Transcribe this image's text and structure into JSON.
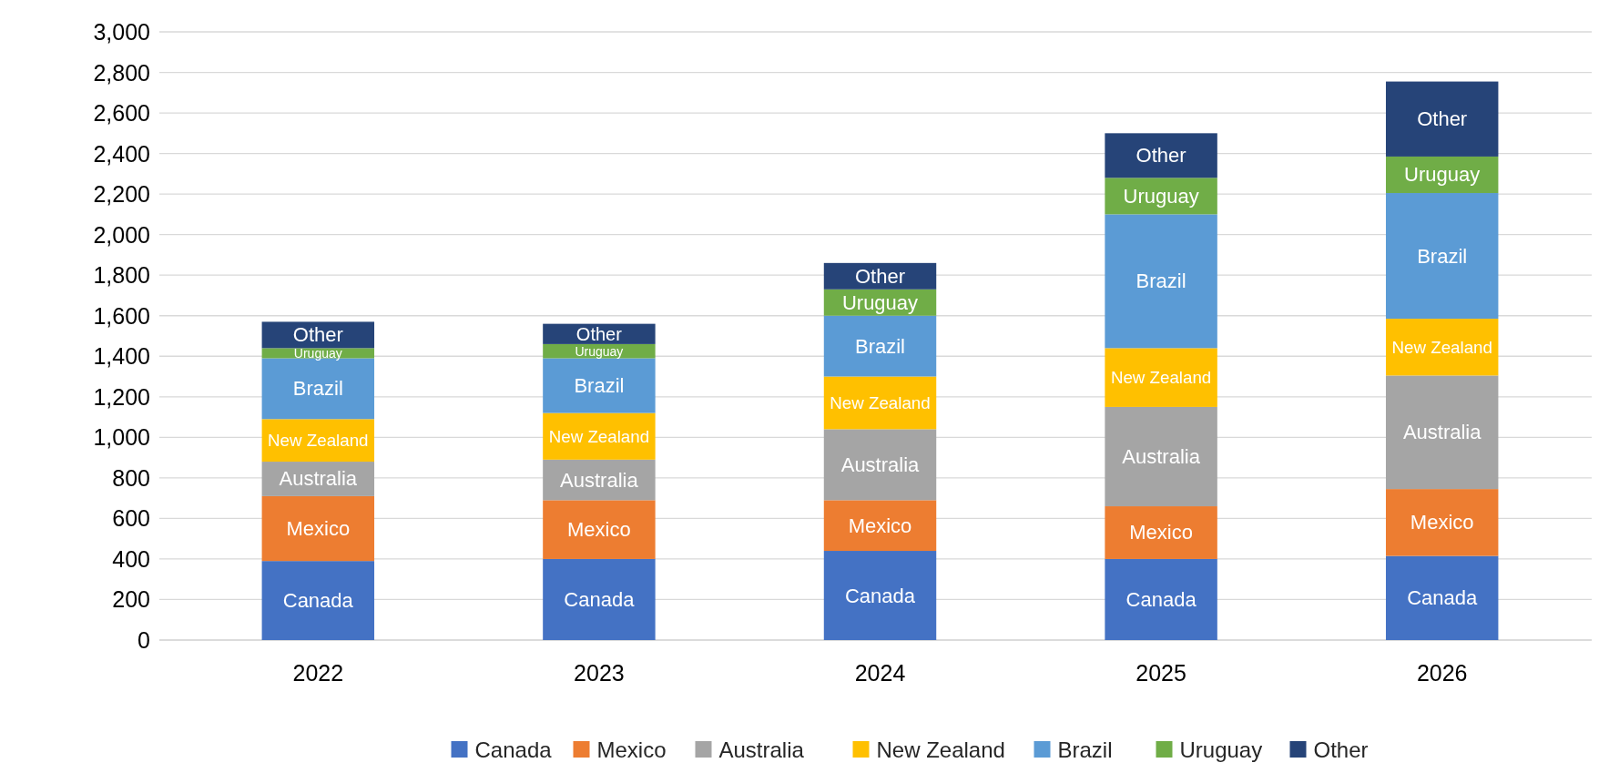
{
  "chart_data": {
    "type": "bar",
    "stacked": true,
    "categories": [
      "2022",
      "2023",
      "2024",
      "2025",
      "2026"
    ],
    "series": [
      {
        "name": "Canada",
        "color": "#4472c4",
        "values": [
          390,
          400,
          440,
          400,
          415
        ]
      },
      {
        "name": "Mexico",
        "color": "#ed7d31",
        "values": [
          320,
          290,
          250,
          260,
          330
        ]
      },
      {
        "name": "Australia",
        "color": "#a5a5a5",
        "values": [
          170,
          200,
          350,
          490,
          560
        ]
      },
      {
        "name": "New Zealand",
        "color": "#ffc000",
        "values": [
          210,
          230,
          260,
          290,
          280
        ]
      },
      {
        "name": "Brazil",
        "color": "#5b9bd5",
        "values": [
          300,
          270,
          300,
          660,
          620
        ]
      },
      {
        "name": "Uruguay",
        "color": "#70ad47",
        "values": [
          50,
          70,
          130,
          180,
          180
        ]
      },
      {
        "name": "Other",
        "color": "#264478",
        "values": [
          130,
          100,
          130,
          220,
          370
        ]
      }
    ],
    "ylim": [
      0,
      3000
    ],
    "yticks": [
      {
        "value": 0,
        "label": "0"
      },
      {
        "value": 200,
        "label": "200"
      },
      {
        "value": 400,
        "label": "400"
      },
      {
        "value": 600,
        "label": "600"
      },
      {
        "value": 800,
        "label": "800"
      },
      {
        "value": 1000,
        "label": "1,000"
      },
      {
        "value": 1200,
        "label": "1,200"
      },
      {
        "value": 1400,
        "label": "1,400"
      },
      {
        "value": 1600,
        "label": "1,600"
      },
      {
        "value": 1800,
        "label": "1,800"
      },
      {
        "value": 2000,
        "label": "2,000"
      },
      {
        "value": 2200,
        "label": "2,200"
      },
      {
        "value": 2400,
        "label": "2,400"
      },
      {
        "value": 2600,
        "label": "2,600"
      },
      {
        "value": 2800,
        "label": "2,800"
      },
      {
        "value": 3000,
        "label": "3,000"
      }
    ],
    "grid": "y",
    "legend": "bottom"
  }
}
